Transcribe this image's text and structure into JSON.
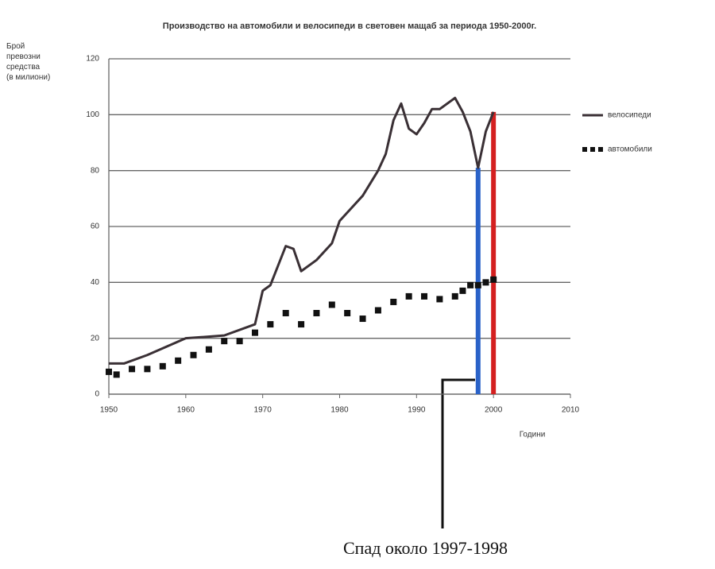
{
  "chart_data": {
    "type": "line",
    "title": "Производство на автомобили и велосипеди в световен мащаб за периода 1950-2000г.",
    "ylabel": [
      "Брой",
      "превозни",
      "средства",
      "(в милиони)"
    ],
    "xlabel": "Години",
    "annotation": "Спад около 1997-1998",
    "xlim": [
      1950,
      2010
    ],
    "xticks": [
      1950,
      1960,
      1970,
      1980,
      1990,
      2000,
      2010
    ],
    "ylim": [
      0,
      120
    ],
    "yticks": [
      0,
      20,
      40,
      60,
      80,
      100,
      120
    ],
    "grid": true,
    "legend": "right",
    "series": [
      {
        "name": "велосипеди",
        "color": "#3a3035",
        "style": "solid",
        "x": [
          1950,
          1952,
          1955,
          1960,
          1965,
          1969,
          1970,
          1971,
          1973,
          1974,
          1975,
          1977,
          1979,
          1980,
          1983,
          1985,
          1986,
          1987,
          1988,
          1989,
          1990,
          1991,
          1992,
          1993,
          1995,
          1996,
          1997,
          1998,
          1999,
          2000
        ],
        "values": [
          11,
          11,
          14,
          20,
          21,
          25,
          37,
          39,
          53,
          52,
          44,
          48,
          54,
          62,
          71,
          80,
          86,
          98,
          104,
          95,
          93,
          97,
          102,
          102,
          106,
          101,
          94,
          81,
          94,
          101
        ]
      },
      {
        "name": "автомобили",
        "color": "#111111",
        "style": "dotted",
        "x": [
          1950,
          1951,
          1953,
          1955,
          1957,
          1959,
          1961,
          1963,
          1965,
          1967,
          1969,
          1971,
          1973,
          1975,
          1977,
          1979,
          1981,
          1983,
          1985,
          1987,
          1989,
          1991,
          1993,
          1995,
          1996,
          1997,
          1998,
          1999,
          2000
        ],
        "values": [
          8,
          7,
          9,
          9,
          10,
          12,
          14,
          16,
          19,
          19,
          22,
          25,
          29,
          25,
          29,
          32,
          29,
          27,
          30,
          33,
          35,
          35,
          34,
          35,
          37,
          39,
          39,
          40,
          41
        ]
      }
    ],
    "highlights": [
      {
        "x": 1998,
        "color": "#2a62c8"
      },
      {
        "x": 2000,
        "color": "#d42020"
      }
    ]
  }
}
